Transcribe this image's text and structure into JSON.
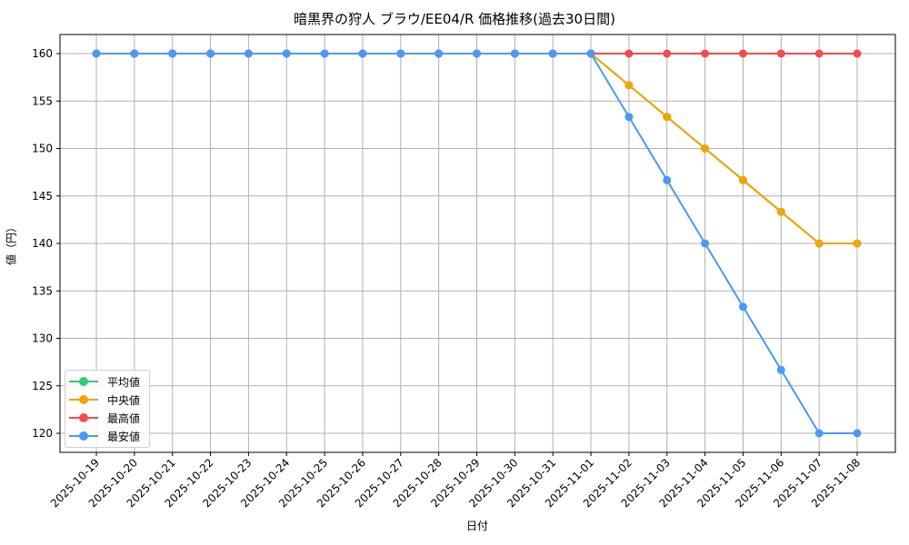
{
  "chart_data": {
    "type": "line",
    "title": "暗黒界の狩人 ブラウ/EE04/R 価格推移(過去30日間)",
    "xlabel": "日付",
    "ylabel": "値（円）",
    "ylim": [
      118,
      162
    ],
    "yticks": [
      120,
      125,
      130,
      135,
      140,
      145,
      150,
      155,
      160
    ],
    "grid": true,
    "legend_position": "lower left",
    "x": [
      "2025-10-19",
      "2025-10-20",
      "2025-10-21",
      "2025-10-22",
      "2025-10-23",
      "2025-10-24",
      "2025-10-25",
      "2025-10-26",
      "2025-10-27",
      "2025-10-28",
      "2025-10-29",
      "2025-10-30",
      "2025-10-31",
      "2025-11-01",
      "2025-11-02",
      "2025-11-03",
      "2025-11-04",
      "2025-11-05",
      "2025-11-06",
      "2025-11-07",
      "2025-11-08"
    ],
    "series": [
      {
        "name": "平均値",
        "color": "#2ecc71",
        "values": [
          160,
          160,
          160,
          160,
          160,
          160,
          160,
          160,
          160,
          160,
          160,
          160,
          160,
          160,
          156.67,
          153.33,
          150,
          146.67,
          143.33,
          140,
          140
        ]
      },
      {
        "name": "中央値",
        "color": "#f0a500",
        "values": [
          160,
          160,
          160,
          160,
          160,
          160,
          160,
          160,
          160,
          160,
          160,
          160,
          160,
          160,
          156.67,
          153.33,
          150,
          146.67,
          143.33,
          140,
          140
        ]
      },
      {
        "name": "最高値",
        "color": "#f44b4b",
        "values": [
          160,
          160,
          160,
          160,
          160,
          160,
          160,
          160,
          160,
          160,
          160,
          160,
          160,
          160,
          160,
          160,
          160,
          160,
          160,
          160,
          160
        ]
      },
      {
        "name": "最安値",
        "color": "#4a9af5",
        "values": [
          160,
          160,
          160,
          160,
          160,
          160,
          160,
          160,
          160,
          160,
          160,
          160,
          160,
          160,
          153.33,
          146.67,
          140,
          133.33,
          126.67,
          120,
          120
        ]
      }
    ]
  }
}
